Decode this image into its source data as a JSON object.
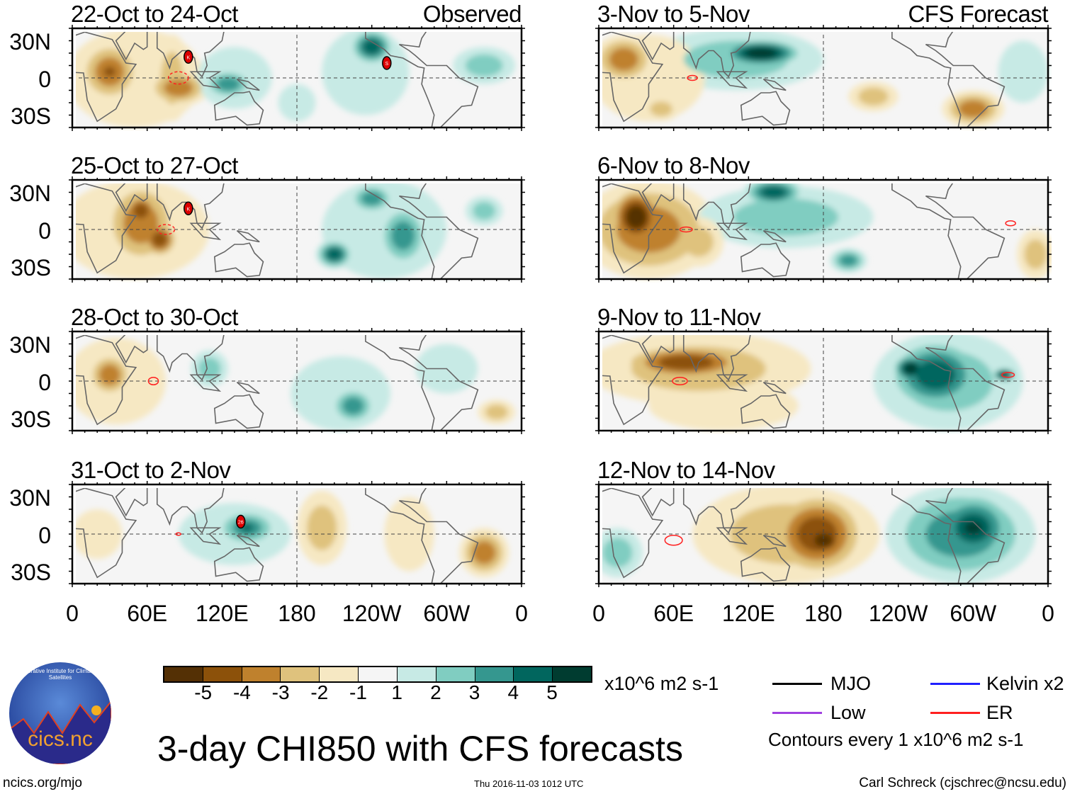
{
  "chart_data": {
    "type": "heatmap",
    "title": "3-day CHI850 with CFS forecasts",
    "units": "x10^6 m2 s-1",
    "lat_ticks": [
      "30N",
      "0",
      "30S"
    ],
    "lon_ticks": [
      "0",
      "60E",
      "120E",
      "180",
      "120W",
      "60W",
      "0"
    ],
    "lon_tick_values": [
      0,
      60,
      120,
      180,
      240,
      300,
      360
    ],
    "lat_range": [
      -40,
      40
    ],
    "colorbar": {
      "labels": [
        "-5",
        "-4",
        "-3",
        "-2",
        "-1",
        "1",
        "2",
        "3",
        "4",
        "5"
      ],
      "colors": [
        "#543005",
        "#8c510a",
        "#bf812d",
        "#dfc27d",
        "#f6e8c3",
        "#f5f5f5",
        "#c7eae5",
        "#80cdc1",
        "#35978f",
        "#01665e",
        "#003c30"
      ]
    },
    "panels": [
      {
        "title": "22-Oct to 24-Oct",
        "tag": "Observed",
        "anoms": [
          [
            50,
            0,
            55,
            40,
            -1
          ],
          [
            30,
            5,
            25,
            25,
            -3
          ],
          [
            30,
            5,
            12,
            10,
            -4
          ],
          [
            85,
            -8,
            25,
            15,
            -3
          ],
          [
            80,
            0,
            15,
            35,
            -2
          ],
          [
            125,
            -5,
            20,
            12,
            3
          ],
          [
            130,
            0,
            30,
            25,
            1
          ],
          [
            240,
            25,
            18,
            15,
            4
          ],
          [
            235,
            5,
            35,
            35,
            1
          ],
          [
            330,
            10,
            25,
            15,
            2
          ],
          [
            180,
            -20,
            15,
            15,
            1
          ]
        ],
        "storms": [
          {
            "lon": 93,
            "lat": 17,
            "label": "K"
          },
          {
            "lon": 252,
            "lat": 12,
            "label": "S"
          }
        ],
        "er": [
          [
            85,
            0,
            8,
            5
          ]
        ]
      },
      {
        "title": "25-Oct to 27-Oct",
        "tag": "",
        "anoms": [
          [
            50,
            0,
            60,
            40,
            -1
          ],
          [
            55,
            5,
            30,
            35,
            -3
          ],
          [
            70,
            -8,
            15,
            15,
            -4
          ],
          [
            55,
            15,
            15,
            15,
            -4
          ],
          [
            210,
            -20,
            15,
            12,
            4
          ],
          [
            265,
            -5,
            20,
            25,
            3
          ],
          [
            240,
            25,
            18,
            12,
            3
          ],
          [
            250,
            0,
            50,
            40,
            1
          ],
          [
            330,
            15,
            15,
            12,
            2
          ]
        ],
        "storms": [
          {
            "lon": 93,
            "lat": 17,
            "label": "K"
          }
        ],
        "er": [
          [
            75,
            0,
            7,
            4
          ]
        ]
      },
      {
        "title": "28-Oct to 30-Oct",
        "tag": "",
        "anoms": [
          [
            35,
            0,
            40,
            35,
            -1
          ],
          [
            30,
            5,
            18,
            18,
            -3
          ],
          [
            110,
            10,
            15,
            15,
            2
          ],
          [
            225,
            -20,
            18,
            15,
            3
          ],
          [
            215,
            -10,
            40,
            30,
            1
          ],
          [
            340,
            -25,
            15,
            10,
            -2
          ],
          [
            300,
            10,
            25,
            20,
            1
          ]
        ],
        "storms": [],
        "er": [
          [
            65,
            0,
            4,
            3
          ]
        ]
      },
      {
        "title": "31-Oct to 2-Nov",
        "tag": "",
        "anoms": [
          [
            130,
            0,
            45,
            25,
            1
          ],
          [
            140,
            5,
            25,
            15,
            3
          ],
          [
            140,
            5,
            12,
            8,
            4
          ],
          [
            200,
            5,
            20,
            30,
            -2
          ],
          [
            330,
            -15,
            20,
            20,
            -3
          ],
          [
            20,
            0,
            20,
            20,
            -1
          ],
          [
            270,
            0,
            20,
            30,
            -1
          ]
        ],
        "storms": [
          {
            "lon": 135,
            "lat": 10,
            "label": "26"
          }
        ],
        "er": [
          [
            85,
            0,
            2,
            1
          ]
        ]
      },
      {
        "title": "3-Nov to 5-Nov",
        "tag": "CFS Forecast",
        "anoms": [
          [
            110,
            15,
            70,
            25,
            2
          ],
          [
            130,
            20,
            35,
            12,
            5
          ],
          [
            20,
            15,
            25,
            20,
            -3
          ],
          [
            40,
            0,
            45,
            35,
            -1
          ],
          [
            50,
            -25,
            15,
            10,
            -2
          ],
          [
            300,
            -25,
            25,
            15,
            -3
          ],
          [
            220,
            -15,
            20,
            12,
            -2
          ],
          [
            340,
            5,
            20,
            25,
            1
          ]
        ],
        "storms": [],
        "er": [
          [
            75,
            0,
            4,
            2
          ]
        ]
      },
      {
        "title": "6-Nov to 8-Nov",
        "tag": "",
        "anoms": [
          [
            40,
            0,
            55,
            40,
            -3
          ],
          [
            30,
            10,
            22,
            25,
            -5
          ],
          [
            150,
            10,
            70,
            25,
            2
          ],
          [
            140,
            30,
            25,
            12,
            4
          ],
          [
            200,
            -25,
            15,
            10,
            3
          ],
          [
            350,
            -20,
            15,
            20,
            -2
          ],
          [
            80,
            -10,
            20,
            20,
            -2
          ]
        ],
        "storms": [],
        "er": [
          [
            70,
            0,
            5,
            2
          ],
          [
            330,
            5,
            4,
            2
          ]
        ]
      },
      {
        "title": "9-Nov to 11-Nov",
        "tag": "",
        "anoms": [
          [
            80,
            10,
            90,
            30,
            -2
          ],
          [
            70,
            15,
            55,
            15,
            -4
          ],
          [
            100,
            -20,
            60,
            20,
            -1
          ],
          [
            280,
            0,
            60,
            40,
            2
          ],
          [
            270,
            5,
            40,
            30,
            4
          ],
          [
            250,
            10,
            15,
            12,
            5
          ],
          [
            325,
            5,
            10,
            6,
            5
          ]
        ],
        "storms": [],
        "er": [
          [
            65,
            0,
            6,
            3
          ],
          [
            328,
            5,
            5,
            2
          ]
        ]
      },
      {
        "title": "12-Nov to 14-Nov",
        "tag": "",
        "anoms": [
          [
            150,
            0,
            75,
            40,
            -2
          ],
          [
            175,
            0,
            40,
            35,
            -4
          ],
          [
            180,
            -5,
            20,
            15,
            -5
          ],
          [
            290,
            0,
            60,
            40,
            3
          ],
          [
            300,
            5,
            35,
            30,
            4
          ],
          [
            300,
            5,
            20,
            15,
            5
          ],
          [
            15,
            -15,
            20,
            20,
            2
          ]
        ],
        "storms": [],
        "er": [
          [
            60,
            -5,
            7,
            4
          ]
        ]
      }
    ]
  },
  "legend": {
    "units": "x10^6 m2 s-1",
    "mjo": "MJO",
    "kelvin": "Kelvin x2",
    "low": "Low",
    "er": "ER",
    "contours": "Contours every 1 x10^6 m2 s-1",
    "colors": {
      "mjo": "#000000",
      "kelvin": "#2020ff",
      "low": "#a040e0",
      "er": "#ff2020"
    }
  },
  "footer": {
    "title": "3-day CHI850 with CFS forecasts",
    "url": "ncics.org/mjo",
    "timestamp": "Thu 2016-11-03 1012 UTC",
    "author": "Carl Schreck (cjschrec@ncsu.edu)"
  },
  "logo": {
    "text": "cics.nc",
    "ring": "Cooperative Institute for Climate and Satellites"
  }
}
